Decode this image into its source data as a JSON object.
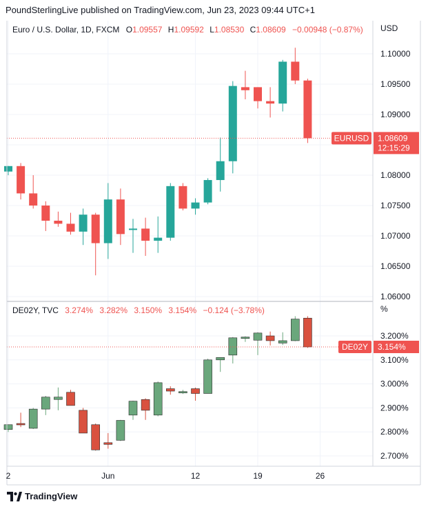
{
  "header": "PoundSterlingLive published on TradingView.com, Jun 23, 2023 09:44 UTC+1",
  "footer": {
    "brand": "TradingView",
    "logo_icon": "tradingview-logo-icon"
  },
  "colors": {
    "up": "#26a69a",
    "down": "#ef5350",
    "up2": "#6aa77c",
    "down2": "#d9513f",
    "grid": "#f0f3fa",
    "text": "#131722"
  },
  "chart_data": [
    {
      "type": "candlestick",
      "symbol": "Euro / U.S. Dollar, 1D, FXCM",
      "ohlc_labels": {
        "o": "O",
        "o_val": "1.09557",
        "h": "H",
        "h_val": "1.09592",
        "l": "L",
        "l_val": "1.08530",
        "c": "C",
        "c_val": "1.08609",
        "change": "−0.00948 (−0.87%)"
      },
      "currency": "USD",
      "price_label": {
        "symbol": "EURUSD",
        "value": "1.08609",
        "countdown": "12:15:29"
      },
      "last_value": 1.08609,
      "ylim": [
        1.0595,
        1.1105
      ],
      "yticks": [
        "1.10000",
        "1.09500",
        "1.09000",
        "1.08500",
        "1.08000",
        "1.07500",
        "1.07000",
        "1.06500",
        "1.06000"
      ],
      "candles": [
        {
          "o": 1.0806,
          "h": 1.0815,
          "l": 1.08,
          "c": 1.0815
        },
        {
          "o": 1.0815,
          "h": 1.082,
          "l": 1.076,
          "c": 1.077
        },
        {
          "o": 1.077,
          "h": 1.08,
          "l": 1.0745,
          "c": 1.075
        },
        {
          "o": 1.075,
          "h": 1.0757,
          "l": 1.0708,
          "c": 1.0725
        },
        {
          "o": 1.0725,
          "h": 1.074,
          "l": 1.0715,
          "c": 1.072
        },
        {
          "o": 1.072,
          "h": 1.0738,
          "l": 1.0702,
          "c": 1.0707
        },
        {
          "o": 1.0707,
          "h": 1.0745,
          "l": 1.0685,
          "c": 1.0735
        },
        {
          "o": 1.0735,
          "h": 1.0738,
          "l": 1.0635,
          "c": 1.0688
        },
        {
          "o": 1.0688,
          "h": 1.0787,
          "l": 1.0662,
          "c": 1.076
        },
        {
          "o": 1.076,
          "h": 1.0778,
          "l": 1.0685,
          "c": 1.0703
        },
        {
          "o": 1.071,
          "h": 1.0728,
          "l": 1.0672,
          "c": 1.0712
        },
        {
          "o": 1.0712,
          "h": 1.073,
          "l": 1.0667,
          "c": 1.0692
        },
        {
          "o": 1.0692,
          "h": 1.0732,
          "l": 1.0672,
          "c": 1.0697
        },
        {
          "o": 1.0697,
          "h": 1.0787,
          "l": 1.0692,
          "c": 1.0782
        },
        {
          "o": 1.0782,
          "h": 1.0787,
          "l": 1.0742,
          "c": 1.0745
        },
        {
          "o": 1.0745,
          "h": 1.0762,
          "l": 1.0735,
          "c": 1.0755
        },
        {
          "o": 1.0755,
          "h": 1.0795,
          "l": 1.0752,
          "c": 1.0792
        },
        {
          "o": 1.0792,
          "h": 1.0862,
          "l": 1.0773,
          "c": 1.0823
        },
        {
          "o": 1.0823,
          "h": 1.0955,
          "l": 1.0803,
          "c": 1.0947
        },
        {
          "o": 1.0945,
          "h": 1.0972,
          "l": 1.0925,
          "c": 1.094
        },
        {
          "o": 1.0945,
          "h": 1.0945,
          "l": 1.091,
          "c": 1.0922
        },
        {
          "o": 1.0922,
          "h": 1.0945,
          "l": 1.0895,
          "c": 1.0918
        },
        {
          "o": 1.0918,
          "h": 1.099,
          "l": 1.0905,
          "c": 1.0987
        },
        {
          "o": 1.0987,
          "h": 1.101,
          "l": 1.095,
          "c": 1.0956
        },
        {
          "o": 1.0956,
          "h": 1.0959,
          "l": 1.0853,
          "c": 1.0861
        }
      ]
    },
    {
      "type": "candlestick",
      "symbol": "DE02Y, TVC",
      "ohlc_labels": {
        "o_val": "3.274%",
        "h_val": "3.282%",
        "l_val": "3.150%",
        "c_val": "3.154%",
        "change": "−0.124 (−3.78%)"
      },
      "currency": "%",
      "price_label": {
        "symbol": "DE02Y",
        "value": "3.154%"
      },
      "last_value": 3.154,
      "ylim": [
        2.66,
        3.29
      ],
      "yticks": [
        "3.200%",
        "3.100%",
        "3.000%",
        "2.900%",
        "2.800%",
        "2.700%"
      ],
      "candles": [
        {
          "o": 2.81,
          "h": 2.83,
          "l": 2.8,
          "c": 2.83
        },
        {
          "o": 2.835,
          "h": 2.88,
          "l": 2.82,
          "c": 2.83
        },
        {
          "o": 2.815,
          "h": 2.9,
          "l": 2.812,
          "c": 2.895
        },
        {
          "o": 2.895,
          "h": 2.95,
          "l": 2.87,
          "c": 2.945
        },
        {
          "o": 2.935,
          "h": 2.985,
          "l": 2.89,
          "c": 2.945
        },
        {
          "o": 2.965,
          "h": 2.975,
          "l": 2.912,
          "c": 2.91
        },
        {
          "o": 2.89,
          "h": 2.9,
          "l": 2.795,
          "c": 2.795
        },
        {
          "o": 2.83,
          "h": 2.835,
          "l": 2.722,
          "c": 2.725
        },
        {
          "o": 2.755,
          "h": 2.795,
          "l": 2.73,
          "c": 2.748
        },
        {
          "o": 2.765,
          "h": 2.85,
          "l": 2.762,
          "c": 2.848
        },
        {
          "o": 2.87,
          "h": 2.93,
          "l": 2.85,
          "c": 2.928
        },
        {
          "o": 2.935,
          "h": 2.94,
          "l": 2.85,
          "c": 2.89
        },
        {
          "o": 2.87,
          "h": 3.01,
          "l": 2.865,
          "c": 3.005
        },
        {
          "o": 2.98,
          "h": 2.99,
          "l": 2.955,
          "c": 2.97
        },
        {
          "o": 2.965,
          "h": 2.975,
          "l": 2.958,
          "c": 2.968
        },
        {
          "o": 2.98,
          "h": 2.985,
          "l": 2.93,
          "c": 2.96
        },
        {
          "o": 2.96,
          "h": 3.105,
          "l": 2.96,
          "c": 3.1
        },
        {
          "o": 3.1,
          "h": 3.11,
          "l": 3.05,
          "c": 3.11
        },
        {
          "o": 3.12,
          "h": 3.195,
          "l": 3.085,
          "c": 3.192
        },
        {
          "o": 3.19,
          "h": 3.198,
          "l": 3.175,
          "c": 3.195
        },
        {
          "o": 3.182,
          "h": 3.215,
          "l": 3.12,
          "c": 3.212
        },
        {
          "o": 3.2,
          "h": 3.218,
          "l": 3.16,
          "c": 3.18
        },
        {
          "o": 3.17,
          "h": 3.215,
          "l": 3.162,
          "c": 3.18
        },
        {
          "o": 3.18,
          "h": 3.282,
          "l": 3.178,
          "c": 3.27
        },
        {
          "o": 3.274,
          "h": 3.282,
          "l": 3.15,
          "c": 3.154
        }
      ]
    }
  ],
  "x_axis": {
    "labels": [
      "2",
      "Jun",
      "12",
      "19",
      "26"
    ]
  }
}
